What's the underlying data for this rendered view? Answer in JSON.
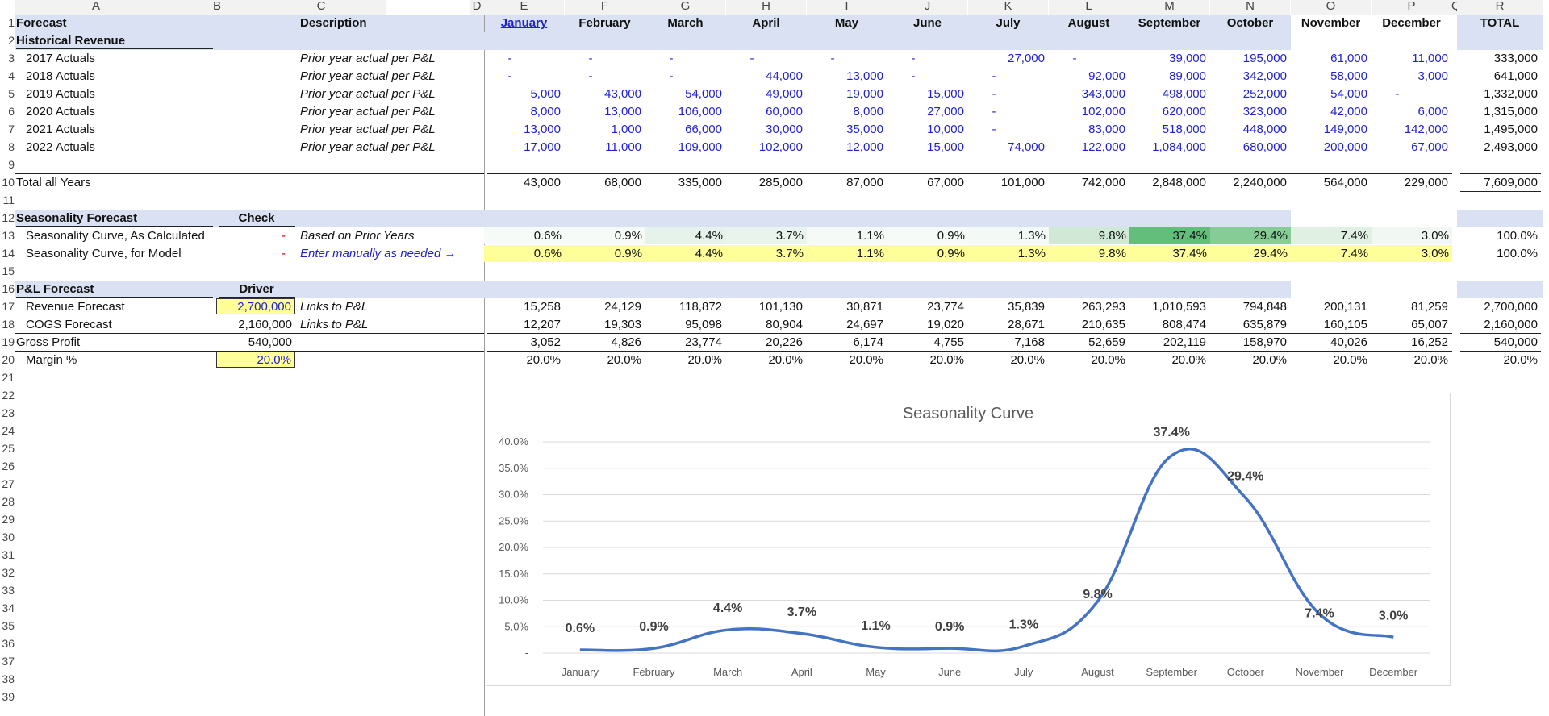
{
  "columns": [
    "A",
    "B",
    "C",
    "D",
    "E",
    "F",
    "G",
    "H",
    "I",
    "J",
    "K",
    "L",
    "M",
    "N",
    "O",
    "P",
    "Q",
    "R"
  ],
  "row_numbers": [
    "1",
    "2",
    "3",
    "4",
    "5",
    "6",
    "7",
    "8",
    "9",
    "10",
    "11",
    "12",
    "13",
    "14",
    "15",
    "16",
    "17",
    "18",
    "19",
    "20",
    "21",
    "22",
    "23",
    "24",
    "25",
    "26",
    "27",
    "28",
    "29",
    "30",
    "31",
    "32",
    "33",
    "34",
    "35",
    "36",
    "37",
    "38",
    "39"
  ],
  "header": {
    "forecast": "Forecast",
    "description": "Description",
    "months": [
      "January",
      "February",
      "March",
      "April",
      "May",
      "June",
      "July",
      "August",
      "September",
      "October",
      "November",
      "December"
    ],
    "total": "TOTAL"
  },
  "historical": {
    "title": "Historical Revenue",
    "rows": [
      {
        "label": "2017 Actuals",
        "desc": "Prior year actual per P&L",
        "values": [
          "-",
          "-",
          "-",
          "-",
          "-",
          "-",
          "27,000",
          "-",
          "39,000",
          "195,000",
          "61,000",
          "11,000"
        ],
        "total": "333,000"
      },
      {
        "label": "2018 Actuals",
        "desc": "Prior year actual per P&L",
        "values": [
          "-",
          "-",
          "-",
          "44,000",
          "13,000",
          "-",
          "-",
          "92,000",
          "89,000",
          "342,000",
          "58,000",
          "3,000"
        ],
        "total": "641,000"
      },
      {
        "label": "2019 Actuals",
        "desc": "Prior year actual per P&L",
        "values": [
          "5,000",
          "43,000",
          "54,000",
          "49,000",
          "19,000",
          "15,000",
          "-",
          "343,000",
          "498,000",
          "252,000",
          "54,000",
          "-"
        ],
        "total": "1,332,000"
      },
      {
        "label": "2020 Actuals",
        "desc": "Prior year actual per P&L",
        "values": [
          "8,000",
          "13,000",
          "106,000",
          "60,000",
          "8,000",
          "27,000",
          "-",
          "102,000",
          "620,000",
          "323,000",
          "42,000",
          "6,000"
        ],
        "total": "1,315,000"
      },
      {
        "label": "2021 Actuals",
        "desc": "Prior year actual per P&L",
        "values": [
          "13,000",
          "1,000",
          "66,000",
          "30,000",
          "35,000",
          "10,000",
          "-",
          "83,000",
          "518,000",
          "448,000",
          "149,000",
          "142,000"
        ],
        "total": "1,495,000"
      },
      {
        "label": "2022 Actuals",
        "desc": "Prior year actual per P&L",
        "values": [
          "17,000",
          "11,000",
          "109,000",
          "102,000",
          "12,000",
          "15,000",
          "74,000",
          "122,000",
          "1,084,000",
          "680,000",
          "200,000",
          "67,000"
        ],
        "total": "2,493,000"
      }
    ],
    "total_label": "Total all Years",
    "total_values": [
      "43,000",
      "68,000",
      "335,000",
      "285,000",
      "87,000",
      "67,000",
      "101,000",
      "742,000",
      "2,848,000",
      "2,240,000",
      "564,000",
      "229,000"
    ],
    "total_total": "7,609,000"
  },
  "seasonality": {
    "title": "Seasonality Forecast",
    "check": "Check",
    "calc": {
      "label": "Seasonality Curve, As Calculated",
      "check": "-",
      "desc": "Based on Prior Years",
      "values": [
        "0.6%",
        "0.9%",
        "4.4%",
        "3.7%",
        "1.1%",
        "0.9%",
        "1.3%",
        "9.8%",
        "37.4%",
        "29.4%",
        "7.4%",
        "3.0%"
      ],
      "total": "100.0%"
    },
    "model": {
      "label": "Seasonality Curve, for Model",
      "check": "-",
      "desc": "Enter manually as needed →",
      "values": [
        "0.6%",
        "0.9%",
        "4.4%",
        "3.7%",
        "1.1%",
        "0.9%",
        "1.3%",
        "9.8%",
        "37.4%",
        "29.4%",
        "7.4%",
        "3.0%"
      ],
      "total": "100.0%"
    },
    "heat_colors": [
      "#f7fbf8",
      "#f6fbf7",
      "#e5f3ea",
      "#e9f5ec",
      "#f5faf6",
      "#f6fbf7",
      "#f3f9f5",
      "#cfe9d6",
      "#63be7b",
      "#85cc97",
      "#e0f1e4",
      "#f1f8f3"
    ]
  },
  "pl": {
    "title": "P&L Forecast",
    "driver": "Driver",
    "revenue": {
      "label": "Revenue Forecast",
      "driver": "2,700,000",
      "desc": "Links to P&L",
      "values": [
        "15,258",
        "24,129",
        "118,872",
        "101,130",
        "30,871",
        "23,774",
        "35,839",
        "263,293",
        "1,010,593",
        "794,848",
        "200,131",
        "81,259"
      ],
      "total": "2,700,000"
    },
    "cogs": {
      "label": "COGS Forecast",
      "driver": "2,160,000",
      "desc": "Links to P&L",
      "values": [
        "12,207",
        "19,303",
        "95,098",
        "80,904",
        "24,697",
        "19,020",
        "28,671",
        "210,635",
        "808,474",
        "635,879",
        "160,105",
        "65,007"
      ],
      "total": "2,160,000"
    },
    "gross": {
      "label": "Gross Profit",
      "driver": "540,000",
      "values": [
        "3,052",
        "4,826",
        "23,774",
        "20,226",
        "6,174",
        "4,755",
        "7,168",
        "52,659",
        "202,119",
        "158,970",
        "40,026",
        "16,252"
      ],
      "total": "540,000"
    },
    "margin": {
      "label": "Margin %",
      "driver": "20.0%",
      "values": [
        "20.0%",
        "20.0%",
        "20.0%",
        "20.0%",
        "20.0%",
        "20.0%",
        "20.0%",
        "20.0%",
        "20.0%",
        "20.0%",
        "20.0%",
        "20.0%"
      ],
      "total": "20.0%"
    }
  },
  "chart_data": {
    "type": "line",
    "title": "Seasonality Curve",
    "categories": [
      "January",
      "February",
      "March",
      "April",
      "May",
      "June",
      "July",
      "August",
      "September",
      "October",
      "November",
      "December"
    ],
    "values": [
      0.6,
      0.9,
      4.4,
      3.7,
      1.1,
      0.9,
      1.3,
      9.8,
      37.4,
      29.4,
      7.4,
      3.0
    ],
    "data_labels": [
      "0.6%",
      "0.9%",
      "4.4%",
      "3.7%",
      "1.1%",
      "0.9%",
      "1.3%",
      "9.8%",
      "37.4%",
      "29.4%",
      "7.4%",
      "3.0%"
    ],
    "yticks": [
      "-",
      "5.0%",
      "10.0%",
      "15.0%",
      "20.0%",
      "25.0%",
      "30.0%",
      "35.0%",
      "40.0%"
    ],
    "ylim": [
      0,
      40
    ],
    "grid": true,
    "line_color": "#4472c4"
  }
}
